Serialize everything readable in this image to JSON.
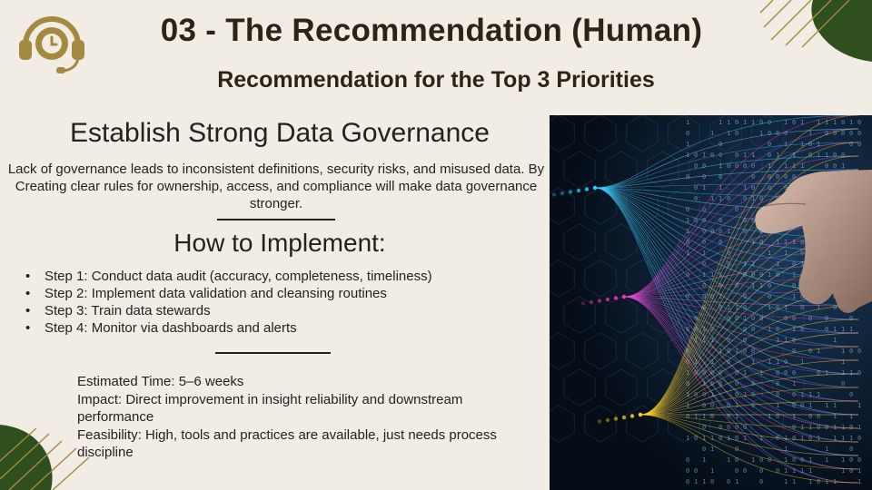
{
  "slide": {
    "title": "03 - The Recommendation (Human)",
    "subtitle": "Recommendation for the Top 3 Priorities"
  },
  "section": {
    "heading": "Establish Strong Data Governance",
    "body": "Lack of governance leads to inconsistent definitions, security risks, and misused data. By Creating clear rules for ownership, access, and compliance will make data governance stronger."
  },
  "implementation": {
    "heading": "How to Implement:",
    "steps": [
      "Step 1: Conduct data audit (accuracy, completeness, timeliness)",
      "Step 2: Implement data validation and cleansing routines",
      "Step 3: Train data stewards",
      "Step 4: Monitor via dashboards and alerts"
    ]
  },
  "details": {
    "time": "Estimated Time: 5–6 weeks",
    "impact": "Impact: Direct improvement in insight reliability and downstream performance",
    "feasibility": "Feasibility: High, tools and practices are available, just needs process discipline"
  },
  "icons": {
    "logo": "headset-clock-icon",
    "bullet": "•"
  },
  "colors": {
    "background": "#f1ece4",
    "accent_gold": "#a48a3f",
    "deco_green": "#2f4f1e",
    "text_dark": "#2d2418"
  }
}
